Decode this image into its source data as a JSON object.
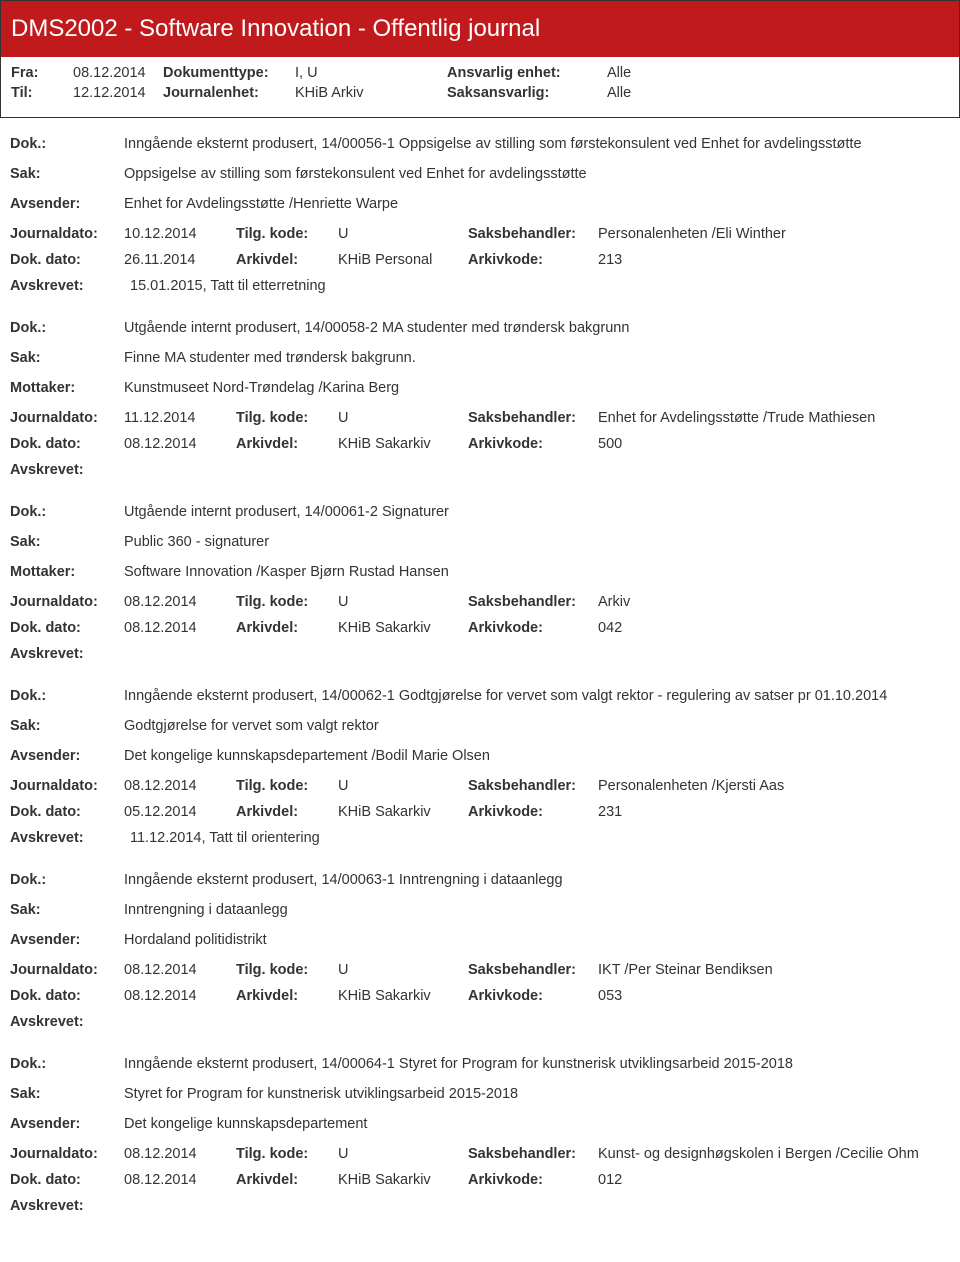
{
  "header": {
    "title": "DMS2002 - Software Innovation - Offentlig journal"
  },
  "meta": {
    "fra_label": "Fra:",
    "fra": "08.12.2014",
    "til_label": "Til:",
    "til": "12.12.2014",
    "doktype_label": "Dokumenttype:",
    "doktype": "I, U",
    "journalenhet_label": "Journalenhet:",
    "journalenhet": "KHiB Arkiv",
    "ansvarlig_label": "Ansvarlig enhet:",
    "ansvarlig": "Alle",
    "saksansvarlig_label": "Saksansvarlig:",
    "saksansvarlig": "Alle"
  },
  "labels": {
    "dok": "Dok.:",
    "sak": "Sak:",
    "avsender": "Avsender:",
    "mottaker": "Mottaker:",
    "journaldato": "Journaldato:",
    "tilgkode": "Tilg. kode:",
    "saksbehandler": "Saksbehandler:",
    "dokdato": "Dok. dato:",
    "arkivdel": "Arkivdel:",
    "arkivkode": "Arkivkode:",
    "avskrevet": "Avskrevet:"
  },
  "entries": [
    {
      "dok": "Inngående eksternt produsert, 14/00056-1 Oppsigelse av stilling som førstekonsulent ved Enhet for avdelingsstøtte",
      "sak": "Oppsigelse av stilling som førstekonsulent ved Enhet for avdelingsstøtte",
      "party_label": "Avsender:",
      "party": "Enhet for Avdelingsstøtte /Henriette Warpe",
      "journaldato": "10.12.2014",
      "tilgkode": "U",
      "saksbehandler": "Personalenheten /Eli Winther",
      "dokdato": "26.11.2014",
      "arkivdel": "KHiB Personal",
      "arkivkode": "213",
      "avskrevet": "15.01.2015, Tatt til etterretning"
    },
    {
      "dok": "Utgående internt produsert, 14/00058-2 MA studenter med trøndersk bakgrunn",
      "sak": "Finne MA studenter med trøndersk bakgrunn.",
      "party_label": "Mottaker:",
      "party": "Kunstmuseet Nord-Trøndelag /Karina Berg",
      "journaldato": "11.12.2014",
      "tilgkode": "U",
      "saksbehandler": "Enhet for Avdelingsstøtte /Trude Mathiesen",
      "dokdato": "08.12.2014",
      "arkivdel": "KHiB Sakarkiv",
      "arkivkode": "500",
      "avskrevet": ""
    },
    {
      "dok": "Utgående internt produsert, 14/00061-2 Signaturer",
      "sak": "Public 360 - signaturer",
      "party_label": "Mottaker:",
      "party": "Software Innovation /Kasper Bjørn Rustad Hansen",
      "journaldato": "08.12.2014",
      "tilgkode": "U",
      "saksbehandler": "Arkiv",
      "dokdato": "08.12.2014",
      "arkivdel": "KHiB Sakarkiv",
      "arkivkode": "042",
      "avskrevet": ""
    },
    {
      "dok": "Inngående eksternt produsert, 14/00062-1 Godtgjørelse for vervet som valgt rektor - regulering av satser pr 01.10.2014",
      "sak": "Godtgjørelse for vervet som valgt rektor",
      "party_label": "Avsender:",
      "party": "Det kongelige kunnskapsdepartement /Bodil Marie Olsen",
      "journaldato": "08.12.2014",
      "tilgkode": "U",
      "saksbehandler": "Personalenheten /Kjersti Aas",
      "dokdato": "05.12.2014",
      "arkivdel": "KHiB Sakarkiv",
      "arkivkode": "231",
      "avskrevet": "11.12.2014, Tatt til orientering"
    },
    {
      "dok": "Inngående eksternt produsert, 14/00063-1 Inntrengning i dataanlegg",
      "sak": "Inntrengning i dataanlegg",
      "party_label": "Avsender:",
      "party": "Hordaland politidistrikt",
      "journaldato": "08.12.2014",
      "tilgkode": "U",
      "saksbehandler": "IKT /Per Steinar Bendiksen",
      "dokdato": "08.12.2014",
      "arkivdel": "KHiB Sakarkiv",
      "arkivkode": "053",
      "avskrevet": ""
    },
    {
      "dok": "Inngående eksternt produsert, 14/00064-1 Styret for Program for kunstnerisk utviklingsarbeid 2015-2018",
      "sak": "Styret for Program for kunstnerisk utviklingsarbeid 2015-2018",
      "party_label": "Avsender:",
      "party": "Det kongelige kunnskapsdepartement",
      "journaldato": "08.12.2014",
      "tilgkode": "U",
      "saksbehandler": "Kunst- og designhøgskolen i Bergen /Cecilie Ohm",
      "dokdato": "08.12.2014",
      "arkivdel": "KHiB Sakarkiv",
      "arkivkode": "012",
      "avskrevet": ""
    }
  ]
}
